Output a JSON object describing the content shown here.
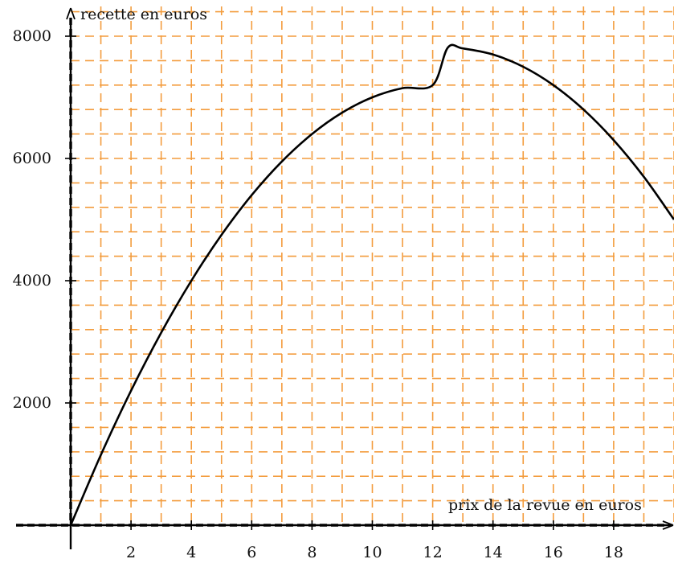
{
  "chart_data": {
    "type": "line",
    "xlabel": "prix de la revue en euros",
    "ylabel": "recette en euros",
    "xlim": [
      0,
      20
    ],
    "ylim": [
      0,
      8000
    ],
    "grid": true,
    "grid_style": "dashed",
    "grid_color": "#f39c3d",
    "curve_color": "#000000",
    "axis_color": "#000000",
    "x_ticks": [
      "2",
      "4",
      "6",
      "8",
      "10",
      "12",
      "14",
      "16",
      "18"
    ],
    "y_ticks": [
      "2000",
      "4000",
      "6000",
      "8000"
    ],
    "x_tick_values": [
      2,
      4,
      6,
      8,
      10,
      12,
      14,
      16,
      18
    ],
    "y_tick_values": [
      2000,
      4000,
      6000,
      8000
    ],
    "series": [
      {
        "x": [
          0,
          1,
          2,
          3,
          4,
          5,
          6,
          7,
          8,
          9,
          10,
          11,
          12,
          12.5,
          13,
          14,
          15,
          16,
          17,
          18,
          19,
          20
        ],
        "values": [
          0,
          1150,
          2200,
          3150,
          4000,
          4750,
          5400,
          5950,
          6400,
          6750,
          7000,
          7150,
          7200,
          7812,
          7800,
          7700,
          7500,
          7200,
          6800,
          6300,
          5700,
          5000
        ]
      }
    ]
  }
}
